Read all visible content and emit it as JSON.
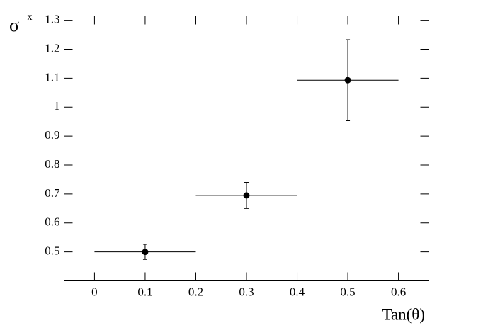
{
  "chart_data": {
    "type": "scatter",
    "x_label": "Tan(θ)",
    "y_label": "σ",
    "y_label_subscript": "x",
    "xlim": [
      -0.06,
      0.66
    ],
    "xticks": [
      0,
      0.1,
      0.2,
      0.3,
      0.4,
      0.5,
      0.6
    ],
    "ylim": [
      0.4,
      1.315
    ],
    "yticks": [
      0.5,
      0.6,
      0.7,
      0.8,
      0.9,
      1,
      1.1,
      1.2,
      1.3
    ],
    "grid": false,
    "series": [
      {
        "color": "#000000",
        "x": [
          0.1,
          0.3,
          0.5
        ],
        "values": [
          0.5,
          0.695,
          1.093
        ],
        "xerr": [
          0.1,
          0.1,
          0.1
        ],
        "yerr": [
          0.026,
          0.045,
          0.14
        ]
      }
    ]
  }
}
